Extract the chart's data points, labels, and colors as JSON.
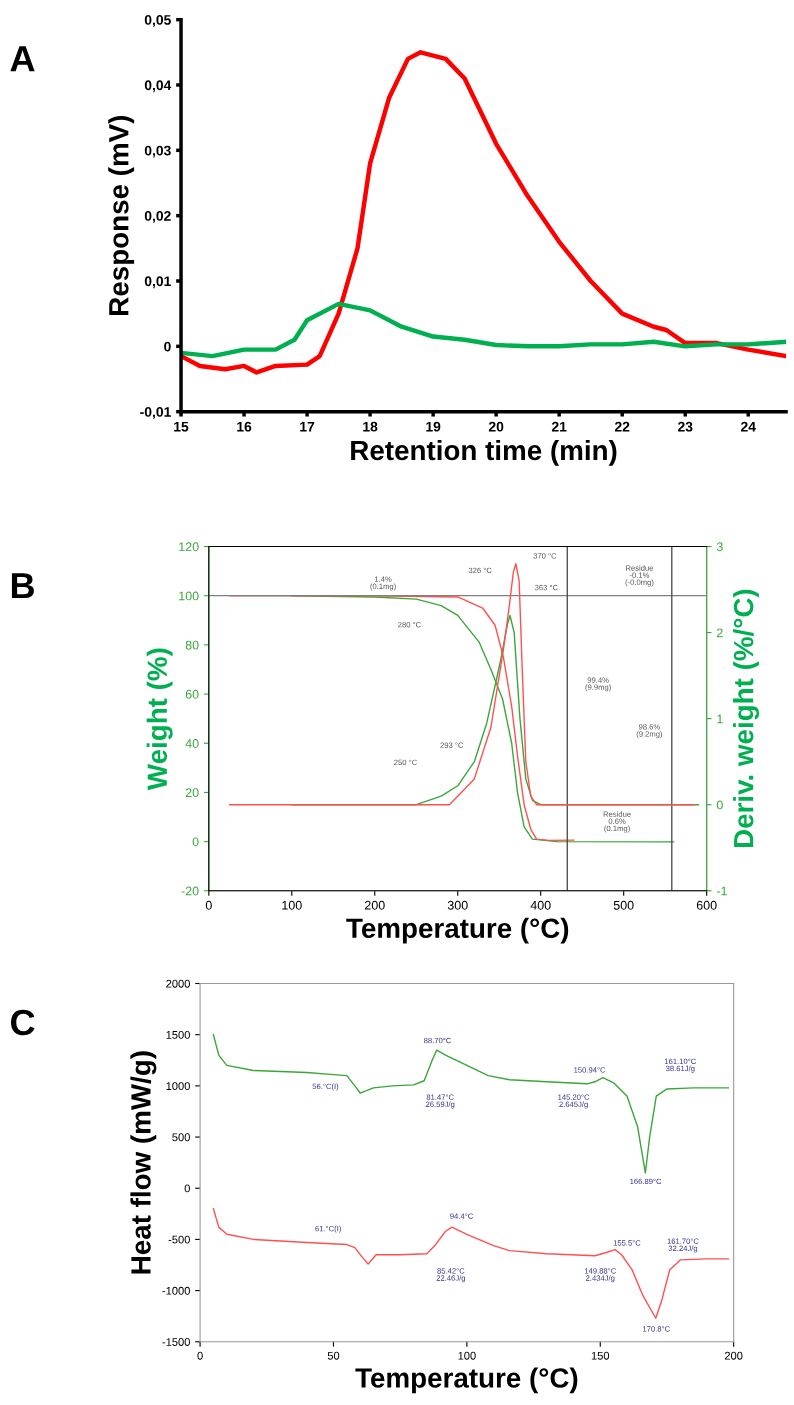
{
  "chart_data": [
    {
      "type": "line",
      "title": "A",
      "xlabel": "Retention time (min)",
      "ylabel": "Response (mV)",
      "xlim": [
        15,
        24.6
      ],
      "xticks": [
        15,
        16,
        17,
        18,
        19,
        20,
        21,
        22,
        23,
        24
      ],
      "ylim": [
        -0.01,
        0.05
      ],
      "yticks": [
        {
          "value": -0.01,
          "label": "-0,01"
        },
        {
          "value": 0,
          "label": "0"
        },
        {
          "value": 0.01,
          "label": "0,01"
        },
        {
          "value": 0.02,
          "label": "0,02"
        },
        {
          "value": 0.03,
          "label": "0,03"
        },
        {
          "value": 0.04,
          "label": "0,04"
        },
        {
          "value": 0.05,
          "label": "0,05"
        }
      ],
      "grid": false,
      "legend": false,
      "series": [
        {
          "color": "#ff0000",
          "x": [
            15,
            15.3,
            15.7,
            16,
            16.2,
            16.5,
            17,
            17.2,
            17.5,
            17.8,
            18,
            18.3,
            18.6,
            18.8,
            19.2,
            19.5,
            20,
            20.5,
            21,
            21.5,
            22,
            22.5,
            22.7,
            23,
            23.5,
            24,
            24.6
          ],
          "values": [
            -0.0015,
            -0.003,
            -0.0035,
            -0.003,
            -0.004,
            -0.003,
            -0.0028,
            -0.0015,
            0.005,
            0.015,
            0.028,
            0.038,
            0.044,
            0.045,
            0.044,
            0.041,
            0.031,
            0.023,
            0.016,
            0.01,
            0.005,
            0.003,
            0.0025,
            0.0005,
            0.0005,
            -0.0005,
            -0.0015
          ]
        },
        {
          "color": "#00b050",
          "x": [
            15,
            15.5,
            16,
            16.5,
            16.8,
            17,
            17.5,
            18,
            18.5,
            19,
            19.5,
            20,
            20.5,
            21,
            21.5,
            22,
            22.5,
            23,
            23.5,
            24,
            24.6
          ],
          "values": [
            -0.001,
            -0.0015,
            -0.0005,
            -0.0005,
            0.001,
            0.004,
            0.0065,
            0.0055,
            0.003,
            0.0015,
            0.001,
            0.0002,
            0,
            0,
            0.0003,
            0.0003,
            0.0007,
            0,
            0.0003,
            0.0003,
            0.0007
          ]
        }
      ]
    },
    {
      "type": "line",
      "title": "B",
      "xlabel": "Temperature (°C)",
      "ylabel": "Weight (%)",
      "y2label": "Deriv. weight (%/°C)",
      "xlim": [
        0,
        600
      ],
      "xticks": [
        0,
        100,
        200,
        300,
        400,
        500,
        600
      ],
      "ylim": [
        -20,
        120
      ],
      "yticks": [
        -20,
        0,
        20,
        40,
        60,
        80,
        100,
        120
      ],
      "y2lim": [
        -1,
        3
      ],
      "y2ticks": [
        -1,
        0,
        1,
        2,
        3
      ],
      "grid": false,
      "legend": false,
      "series": [
        {
          "color": "#3aa63a",
          "x": [
            100,
            200,
            250,
            280,
            300,
            326,
            340,
            354,
            365,
            372,
            380,
            390,
            420,
            560
          ],
          "values": [
            100,
            99.5,
            98.6,
            96,
            92,
            81,
            70,
            58,
            40,
            20,
            6,
            1,
            0,
            -0.1
          ]
        },
        {
          "color": "#ff5050",
          "x": [
            25,
            200,
            300,
            330,
            345,
            355,
            365,
            372,
            380,
            388,
            395,
            410,
            440
          ],
          "values": [
            100,
            100,
            99.5,
            95,
            88,
            75,
            55,
            35,
            15,
            5,
            1,
            0.5,
            0.6
          ]
        },
        {
          "color": "#3aa63a",
          "axis": "y2",
          "x": [
            100,
            250,
            280,
            300,
            320,
            335,
            350,
            360,
            363,
            368,
            375,
            382,
            390,
            400,
            590
          ],
          "values": [
            0,
            0,
            0.1,
            0.22,
            0.5,
            0.95,
            1.6,
            2.1,
            2.2,
            2.0,
            1.0,
            0.3,
            0.05,
            0,
            0
          ]
        },
        {
          "color": "#ff5050",
          "axis": "y2",
          "x": [
            25,
            290,
            320,
            340,
            355,
            362,
            367,
            370,
            374,
            378,
            382,
            388,
            395,
            585
          ],
          "values": [
            0,
            0,
            0.3,
            0.9,
            1.8,
            2.3,
            2.7,
            2.8,
            2.6,
            1.5,
            0.5,
            0.1,
            0,
            0
          ]
        }
      ],
      "ref_lines": [
        {
          "axis": "y",
          "value": 100,
          "color": "#808080"
        },
        {
          "axis": "x",
          "value": 432,
          "color": "#404040"
        },
        {
          "axis": "x",
          "value": 558,
          "color": "#404040"
        }
      ],
      "annotations": [
        "1.4%\n(0.1mg)",
        "280 °C",
        "326 °C",
        "370 °C",
        "363 °C",
        "250 °C",
        "293 °C",
        "Residue\n-0.1%\n(-0.0mg)",
        "99.4%\n(9.9mg)",
        "98.6%\n(9.2mg)",
        "Residue\n0.6%\n(0.1mg)"
      ]
    },
    {
      "type": "line",
      "title": "C",
      "xlabel": "Temperature (°C)",
      "ylabel": "Heat flow (mW/g)",
      "xlim": [
        0,
        200
      ],
      "xticks": [
        0,
        50,
        100,
        150,
        200
      ],
      "ylim": [
        -1500,
        2000
      ],
      "yticks": [
        -1500,
        -1000,
        -500,
        0,
        500,
        1000,
        1500,
        2000
      ],
      "grid": false,
      "legend": false,
      "series": [
        {
          "color": "#3aa63a",
          "x": [
            5,
            7,
            10,
            20,
            40,
            50,
            55,
            58,
            60,
            65,
            72,
            80,
            84,
            87,
            88.7,
            92,
            100,
            108,
            116,
            130,
            145,
            148,
            151,
            155,
            160,
            164,
            166.9,
            168.5,
            171,
            175,
            185,
            198
          ],
          "values": [
            1500,
            1300,
            1200,
            1150,
            1130,
            1110,
            1100,
            1000,
            930,
            980,
            1000,
            1010,
            1050,
            1250,
            1350,
            1300,
            1200,
            1100,
            1060,
            1040,
            1020,
            1040,
            1080,
            1030,
            900,
            600,
            150,
            500,
            900,
            970,
            980,
            980
          ]
        },
        {
          "color": "#ff5050",
          "x": [
            5,
            7,
            10,
            20,
            40,
            55,
            58,
            61,
            63,
            66,
            75,
            85,
            88,
            92,
            94.4,
            100,
            110,
            116,
            130,
            148,
            152,
            155.5,
            158,
            162,
            166,
            170.8,
            173,
            176,
            180,
            190,
            198
          ],
          "values": [
            -200,
            -380,
            -450,
            -500,
            -530,
            -550,
            -580,
            -680,
            -740,
            -650,
            -650,
            -640,
            -560,
            -420,
            -380,
            -450,
            -560,
            -610,
            -640,
            -660,
            -630,
            -600,
            -650,
            -800,
            -1050,
            -1270,
            -1100,
            -800,
            -700,
            -690,
            -690
          ]
        }
      ],
      "annotations": [
        "56.°C(I)",
        "88.70°C",
        "81.47°C\n26.59J/g",
        "150.94°C",
        "145.20°C\n2.645J/g",
        "161.10°C\n38.61J/g",
        "166.89°C",
        "61.°C(I)",
        "94.4°C",
        "85.42°C\n22.46J/g",
        "155.5°C",
        "149.88°C\n2.434J/g",
        "161.70°C\n32.24J/g",
        "170.8°C"
      ]
    }
  ]
}
